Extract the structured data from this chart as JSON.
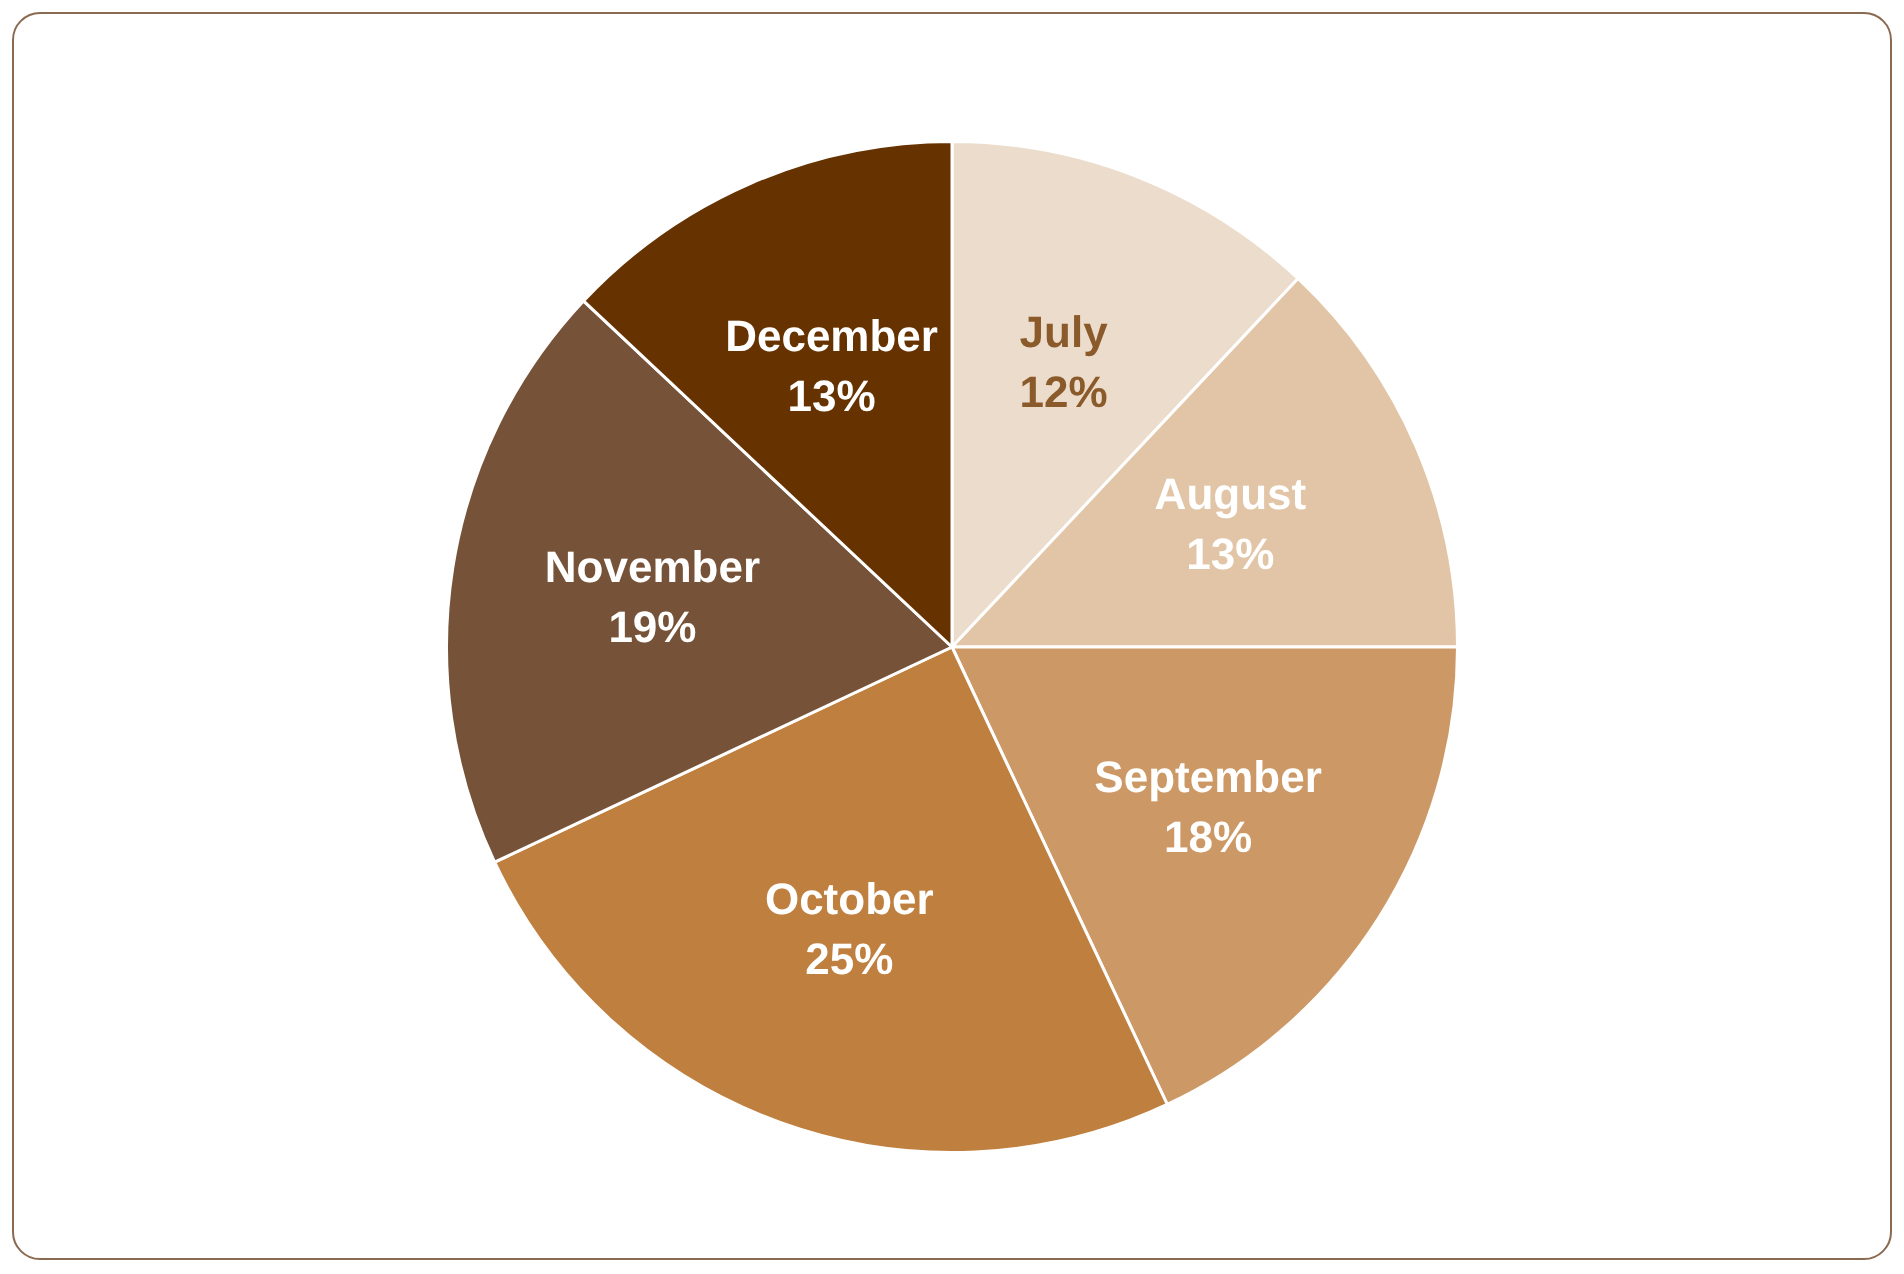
{
  "chart_data": {
    "type": "pie",
    "categories": [
      "July",
      "August",
      "September",
      "October",
      "November",
      "December"
    ],
    "values": [
      12,
      13,
      18,
      25,
      19,
      13
    ],
    "value_labels": [
      "12%",
      "13%",
      "18%",
      "25%",
      "19%",
      "13%"
    ],
    "colors": [
      "#ecdccb",
      "#e1c5a6",
      "#cc9966",
      "#bf7f3f",
      "#765338",
      "#663300"
    ],
    "legend": false
  }
}
